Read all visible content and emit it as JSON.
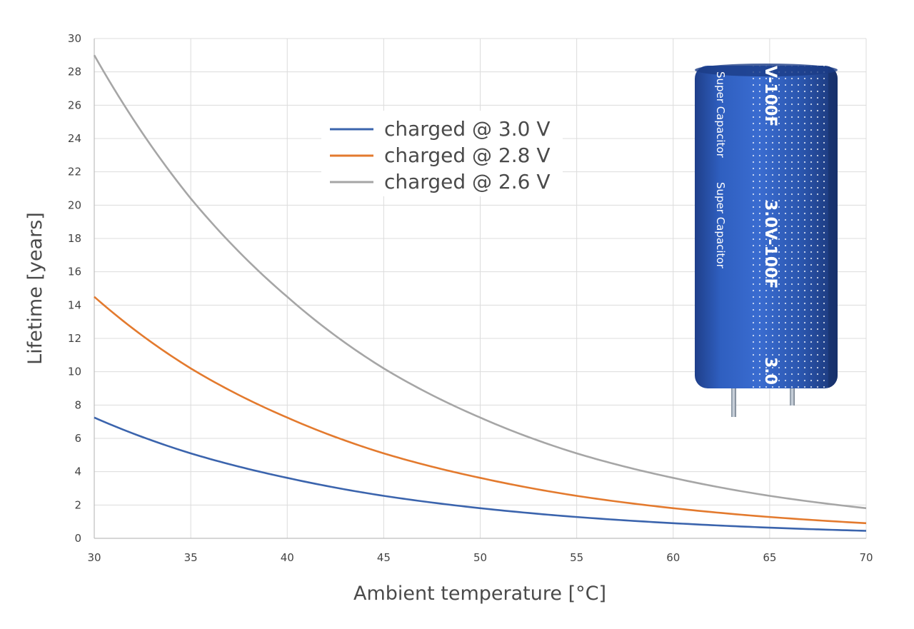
{
  "chart_data": {
    "type": "line",
    "title": "",
    "xlabel": "Ambient temperature [°C]",
    "ylabel": "Lifetime [years]",
    "xlim": [
      30,
      70
    ],
    "ylim": [
      0,
      30
    ],
    "xticks": [
      30,
      35,
      40,
      45,
      50,
      55,
      60,
      65,
      70
    ],
    "yticks": [
      0,
      2,
      4,
      6,
      8,
      10,
      12,
      14,
      16,
      18,
      20,
      22,
      24,
      26,
      28,
      30
    ],
    "grid": true,
    "legend_position": "top-center",
    "series": [
      {
        "name": "charged @ 3.0 V",
        "color": "#3b64ad",
        "x": [
          30,
          35,
          40,
          45,
          50,
          55,
          60,
          65,
          70
        ],
        "y": [
          7.25,
          5.1,
          3.63,
          2.55,
          1.81,
          1.28,
          0.91,
          0.64,
          0.45
        ]
      },
      {
        "name": "charged @ 2.8 V",
        "color": "#e37a2e",
        "x": [
          30,
          35,
          40,
          45,
          50,
          55,
          60,
          65,
          70
        ],
        "y": [
          14.5,
          10.2,
          7.25,
          5.1,
          3.63,
          2.55,
          1.81,
          1.28,
          0.91
        ]
      },
      {
        "name": "charged @ 2.6 V",
        "color": "#a6a6a6",
        "x": [
          30,
          35,
          40,
          45,
          50,
          55,
          60,
          65,
          70
        ],
        "y": [
          29.0,
          20.4,
          14.5,
          10.2,
          7.25,
          5.1,
          3.63,
          2.55,
          1.81
        ]
      }
    ]
  },
  "photo": {
    "label_brand": "Super Capacitor",
    "label_rating": "3.0V-100F",
    "label_top": "V-100F",
    "label_bottom": "3.0",
    "body_color": "#2b57b5"
  }
}
